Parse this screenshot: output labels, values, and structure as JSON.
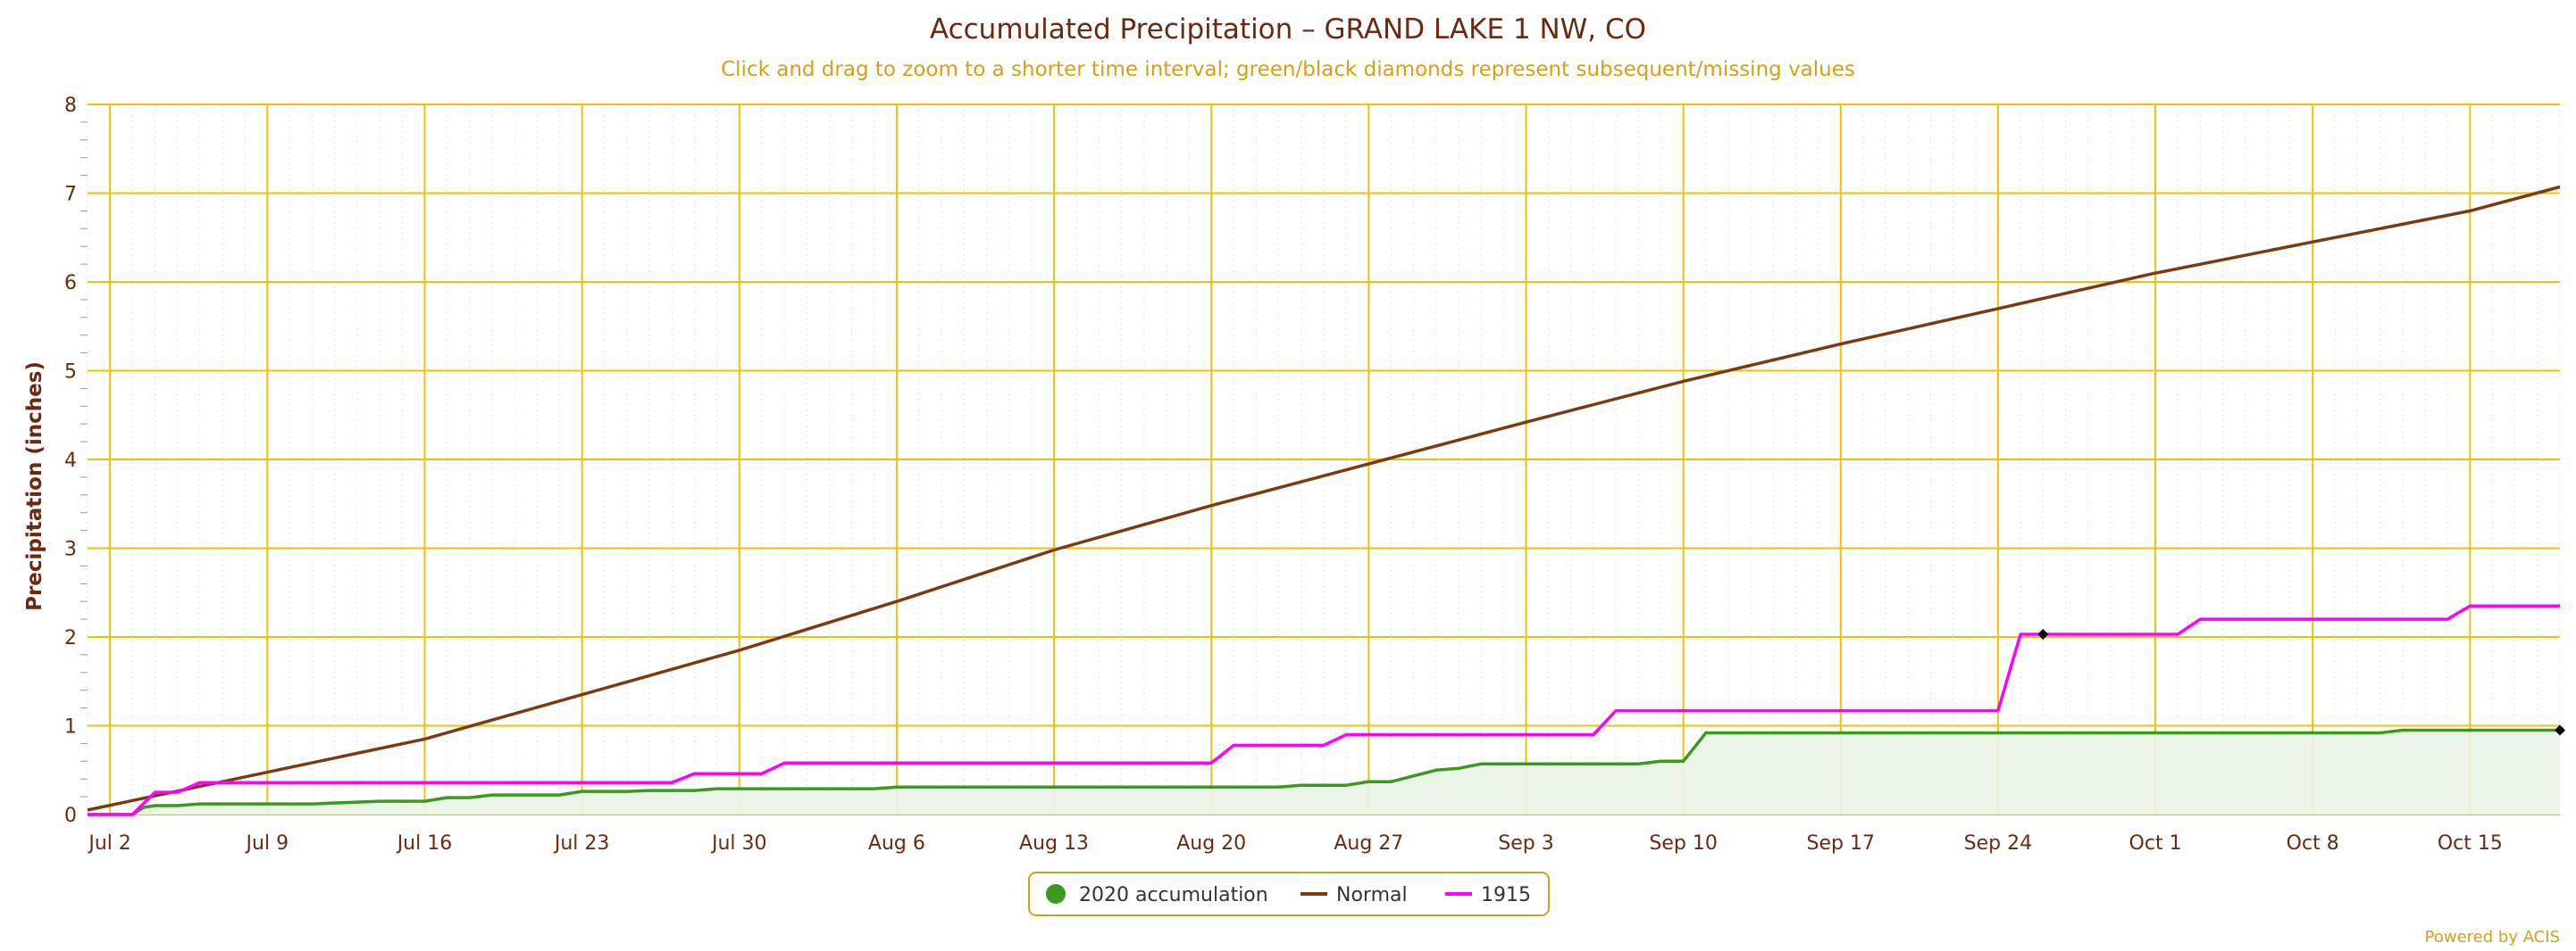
{
  "chart_data": {
    "type": "line",
    "title": "Accumulated Precipitation – GRAND LAKE 1 NW, CO",
    "subtitle": "Click and drag to zoom to a shorter time interval; green/black diamonds represent subsequent/missing values",
    "ylabel": "Precipitation (inches)",
    "xlabel": "",
    "xlim": [
      1,
      111
    ],
    "ylim": [
      0,
      8
    ],
    "y_ticks": [
      0,
      1,
      2,
      3,
      4,
      5,
      6,
      7,
      8
    ],
    "x_ticks": [
      {
        "day": 2,
        "label": "Jul 2"
      },
      {
        "day": 9,
        "label": "Jul 9"
      },
      {
        "day": 16,
        "label": "Jul 16"
      },
      {
        "day": 23,
        "label": "Jul 23"
      },
      {
        "day": 30,
        "label": "Jul 30"
      },
      {
        "day": 37,
        "label": "Aug 6"
      },
      {
        "day": 44,
        "label": "Aug 13"
      },
      {
        "day": 51,
        "label": "Aug 20"
      },
      {
        "day": 58,
        "label": "Aug 27"
      },
      {
        "day": 65,
        "label": "Sep 3"
      },
      {
        "day": 72,
        "label": "Sep 10"
      },
      {
        "day": 79,
        "label": "Sep 17"
      },
      {
        "day": 86,
        "label": "Sep 24"
      },
      {
        "day": 93,
        "label": "Oct 1"
      },
      {
        "day": 100,
        "label": "Oct 8"
      },
      {
        "day": 107,
        "label": "Oct 15"
      }
    ],
    "grid": true,
    "legend_position": "bottom-center",
    "series": [
      {
        "name": "2020 accumulation",
        "color": "#3a9a1e",
        "fill": "#e9f4e4",
        "marker": "circle",
        "points": [
          [
            1,
            0
          ],
          [
            3,
            0
          ],
          [
            3.5,
            0.08
          ],
          [
            4,
            0.1
          ],
          [
            5,
            0.1
          ],
          [
            6,
            0.12
          ],
          [
            11,
            0.12
          ],
          [
            14,
            0.15
          ],
          [
            15,
            0.15
          ],
          [
            16,
            0.15
          ],
          [
            17,
            0.19
          ],
          [
            18,
            0.19
          ],
          [
            19,
            0.22
          ],
          [
            22,
            0.22
          ],
          [
            23,
            0.26
          ],
          [
            25,
            0.26
          ],
          [
            26,
            0.27
          ],
          [
            28,
            0.27
          ],
          [
            29,
            0.29
          ],
          [
            36,
            0.29
          ],
          [
            37,
            0.31
          ],
          [
            54,
            0.31
          ],
          [
            55,
            0.33
          ],
          [
            57,
            0.33
          ],
          [
            58,
            0.37
          ],
          [
            59,
            0.37
          ],
          [
            61,
            0.5
          ],
          [
            62,
            0.52
          ],
          [
            63,
            0.57
          ],
          [
            70,
            0.57
          ],
          [
            71,
            0.6
          ],
          [
            72,
            0.6
          ],
          [
            73,
            0.92
          ],
          [
            103,
            0.92
          ],
          [
            104,
            0.95
          ],
          [
            111,
            0.95
          ]
        ]
      },
      {
        "name": "Normal",
        "color": "#7b3a10",
        "points": [
          [
            1,
            0.05
          ],
          [
            16,
            0.85
          ],
          [
            30,
            1.85
          ],
          [
            37,
            2.4
          ],
          [
            44,
            2.98
          ],
          [
            51,
            3.48
          ],
          [
            58,
            3.95
          ],
          [
            65,
            4.42
          ],
          [
            72,
            4.88
          ],
          [
            79,
            5.3
          ],
          [
            86,
            5.7
          ],
          [
            93,
            6.1
          ],
          [
            100,
            6.45
          ],
          [
            107,
            6.8
          ],
          [
            111,
            7.07
          ]
        ]
      },
      {
        "name": "1915",
        "color": "#ff00ff",
        "points": [
          [
            1,
            0
          ],
          [
            3,
            0
          ],
          [
            4,
            0.25
          ],
          [
            5,
            0.25
          ],
          [
            6,
            0.36
          ],
          [
            27,
            0.36
          ],
          [
            28,
            0.46
          ],
          [
            31,
            0.46
          ],
          [
            32,
            0.58
          ],
          [
            51,
            0.58
          ],
          [
            52,
            0.78
          ],
          [
            56,
            0.78
          ],
          [
            57,
            0.9
          ],
          [
            68,
            0.9
          ],
          [
            69,
            1.17
          ],
          [
            86,
            1.17
          ],
          [
            87,
            2.03
          ],
          [
            94,
            2.03
          ],
          [
            95,
            2.2
          ],
          [
            106,
            2.2
          ],
          [
            107,
            2.35
          ],
          [
            111,
            2.35
          ]
        ]
      }
    ],
    "markers": [
      {
        "series": "1915",
        "x": 88,
        "y": 2.03,
        "color": "#000000",
        "shape": "diamond"
      },
      {
        "series": "2020 accumulation",
        "x": 111,
        "y": 0.95,
        "color": "#000000",
        "shape": "diamond"
      }
    ],
    "credit": "Powered by ACIS",
    "colors": {
      "text": "#6b2a10",
      "subtitle": "#d4a017",
      "grid": "#f2c200",
      "legend_border": "#d4a017"
    }
  }
}
